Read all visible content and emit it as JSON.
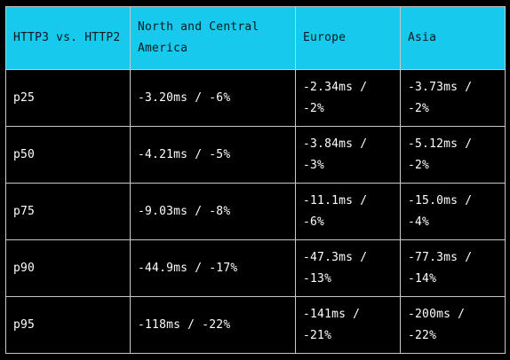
{
  "table": {
    "headers": [
      "HTTP3 vs. HTTP2",
      "North and Central America",
      "Europe",
      "Asia"
    ],
    "rows": [
      [
        "p25",
        "-3.20ms / -6%",
        "-2.34ms / -2%",
        "-3.73ms / -2%"
      ],
      [
        "p50",
        "-4.21ms / -5%",
        "-3.84ms / -3%",
        "-5.12ms / -2%"
      ],
      [
        "p75",
        "-9.03ms / -8%",
        "-11.1ms / -6%",
        "-15.0ms / -4%"
      ],
      [
        "p90",
        "-44.9ms / -17%",
        "-47.3ms / -13%",
        "-77.3ms / -14%"
      ],
      [
        "p95",
        "-118ms / -22%",
        "-141ms / -21%",
        "-200ms / -22%"
      ]
    ]
  },
  "colors": {
    "header_background": "#17c9ec",
    "body_background": "#000000",
    "border": "#c8c8c8"
  }
}
